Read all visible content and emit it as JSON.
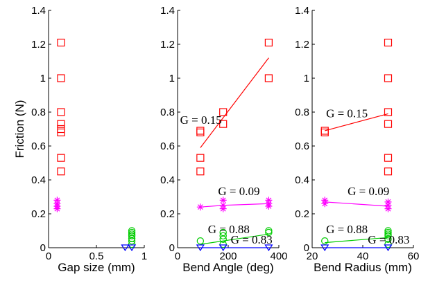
{
  "chart_data": [
    {
      "type": "scatter",
      "xlabel": "Gap size (mm)",
      "ylabel": "Friction (N)",
      "xlim": [
        0,
        1
      ],
      "ylim": [
        0,
        1.4
      ],
      "xticks": [
        "0",
        "0.5",
        "1"
      ],
      "yticks": [
        "0",
        "0.2",
        "0.4",
        "0.6",
        "0.8",
        "1",
        "1.2",
        "1.4"
      ],
      "series": [
        {
          "marker": "square",
          "color": "#ff0000",
          "points": [
            [
              0.13,
              1.21
            ],
            [
              0.13,
              1.0
            ],
            [
              0.13,
              0.8
            ],
            [
              0.13,
              0.73
            ],
            [
              0.13,
              0.7
            ],
            [
              0.13,
              0.68
            ],
            [
              0.13,
              0.53
            ],
            [
              0.13,
              0.45
            ]
          ]
        },
        {
          "marker": "star",
          "color": "#ff00ff",
          "points": [
            [
              0.09,
              0.28
            ],
            [
              0.09,
              0.26
            ],
            [
              0.09,
              0.245
            ],
            [
              0.09,
              0.23
            ]
          ]
        },
        {
          "marker": "circle",
          "color": "#00cc00",
          "points": [
            [
              0.87,
              0.1
            ],
            [
              0.87,
              0.09
            ],
            [
              0.87,
              0.08
            ],
            [
              0.87,
              0.07
            ],
            [
              0.87,
              0.055
            ],
            [
              0.87,
              0.04
            ],
            [
              0.87,
              0.02
            ]
          ]
        },
        {
          "marker": "triangle-down",
          "color": "#0000ff",
          "points": [
            [
              0.8,
              0.0
            ],
            [
              0.87,
              0.0
            ]
          ]
        }
      ],
      "fits": [],
      "annotations": []
    },
    {
      "type": "scatter",
      "xlabel": "Bend Angle (deg)",
      "ylabel": "",
      "xlim": [
        0,
        400
      ],
      "ylim": [
        0,
        1.4
      ],
      "xticks": [
        "0",
        "200",
        "400"
      ],
      "yticks": [
        "0",
        "0.2",
        "0.4",
        "0.6",
        "0.8",
        "1",
        "1.2",
        "1.4"
      ],
      "series": [
        {
          "marker": "square",
          "color": "#ff0000",
          "points": [
            [
              90,
              0.69
            ],
            [
              90,
              0.68
            ],
            [
              90,
              0.53
            ],
            [
              90,
              0.45
            ],
            [
              180,
              0.8
            ],
            [
              180,
              0.73
            ],
            [
              360,
              1.21
            ],
            [
              360,
              1.0
            ]
          ]
        },
        {
          "marker": "star",
          "color": "#ff00ff",
          "points": [
            [
              90,
              0.24
            ],
            [
              180,
              0.28
            ],
            [
              180,
              0.25
            ],
            [
              180,
              0.23
            ],
            [
              360,
              0.28
            ],
            [
              360,
              0.26
            ],
            [
              360,
              0.245
            ]
          ]
        },
        {
          "marker": "circle",
          "color": "#00cc00",
          "points": [
            [
              90,
              0.04
            ],
            [
              180,
              0.09
            ],
            [
              180,
              0.07
            ],
            [
              180,
              0.05
            ],
            [
              180,
              0.02
            ],
            [
              360,
              0.1
            ],
            [
              360,
              0.09
            ]
          ]
        },
        {
          "marker": "triangle-down",
          "color": "#0000ff",
          "points": [
            [
              90,
              0.0
            ],
            [
              180,
              0.0
            ],
            [
              360,
              0.0
            ]
          ]
        }
      ],
      "fits": [
        {
          "color": "#ff0000",
          "points": [
            [
              90,
              0.59
            ],
            [
              360,
              1.12
            ]
          ]
        },
        {
          "color": "#ff00ff",
          "points": [
            [
              90,
              0.24
            ],
            [
              180,
              0.25
            ],
            [
              360,
              0.26
            ]
          ]
        },
        {
          "color": "#00cc00",
          "points": [
            [
              90,
              0.02
            ],
            [
              360,
              0.08
            ]
          ]
        },
        {
          "color": "#0000ff",
          "points": [
            [
              90,
              0.0
            ],
            [
              360,
              0.0
            ]
          ]
        }
      ],
      "annotations": [
        {
          "text": "G = 0.15",
          "x": 10,
          "y": 0.73
        },
        {
          "text": "G = 0.09",
          "x": 160,
          "y": 0.31
        },
        {
          "text": "G = 0.88",
          "x": 120,
          "y": 0.085
        },
        {
          "text": "G = 0.83",
          "x": 210,
          "y": 0.025
        }
      ]
    },
    {
      "type": "scatter",
      "xlabel": "Bend Radius (mm)",
      "ylabel": "",
      "xlim": [
        20,
        60
      ],
      "ylim": [
        0,
        1.4
      ],
      "xticks": [
        "20",
        "40",
        "60"
      ],
      "yticks": [
        "0",
        "0.2",
        "0.4",
        "0.6",
        "0.8",
        "1",
        "1.2",
        "1.4"
      ],
      "series": [
        {
          "marker": "square",
          "color": "#ff0000",
          "points": [
            [
              25,
              0.69
            ],
            [
              25,
              0.68
            ],
            [
              50,
              1.21
            ],
            [
              50,
              1.0
            ],
            [
              50,
              0.8
            ],
            [
              50,
              0.73
            ],
            [
              50,
              0.53
            ],
            [
              50,
              0.45
            ]
          ]
        },
        {
          "marker": "star",
          "color": "#ff00ff",
          "points": [
            [
              25,
              0.28
            ],
            [
              25,
              0.26
            ],
            [
              50,
              0.27
            ],
            [
              50,
              0.25
            ],
            [
              50,
              0.23
            ]
          ]
        },
        {
          "marker": "circle",
          "color": "#00cc00",
          "points": [
            [
              25,
              0.04
            ],
            [
              50,
              0.1
            ],
            [
              50,
              0.09
            ],
            [
              50,
              0.08
            ],
            [
              50,
              0.07
            ],
            [
              50,
              0.05
            ],
            [
              50,
              0.02
            ]
          ]
        },
        {
          "marker": "triangle-down",
          "color": "#0000ff",
          "points": [
            [
              25,
              0.0
            ],
            [
              50,
              0.0
            ]
          ]
        }
      ],
      "fits": [
        {
          "color": "#ff0000",
          "points": [
            [
              25,
              0.69
            ],
            [
              50,
              0.79
            ]
          ]
        },
        {
          "color": "#ff00ff",
          "points": [
            [
              25,
              0.27
            ],
            [
              50,
              0.245
            ]
          ]
        },
        {
          "color": "#00cc00",
          "points": [
            [
              25,
              0.03
            ],
            [
              50,
              0.06
            ]
          ]
        },
        {
          "color": "#0000ff",
          "points": [
            [
              25,
              0.0
            ],
            [
              50,
              0.0
            ]
          ]
        }
      ],
      "annotations": [
        {
          "text": "G = 0.15",
          "x": 25.5,
          "y": 0.77
        },
        {
          "text": "G = 0.09",
          "x": 34,
          "y": 0.31
        },
        {
          "text": "G = 0.88",
          "x": 25.5,
          "y": 0.085
        },
        {
          "text": "G = 0.83",
          "x": 42,
          "y": 0.025
        }
      ]
    }
  ]
}
